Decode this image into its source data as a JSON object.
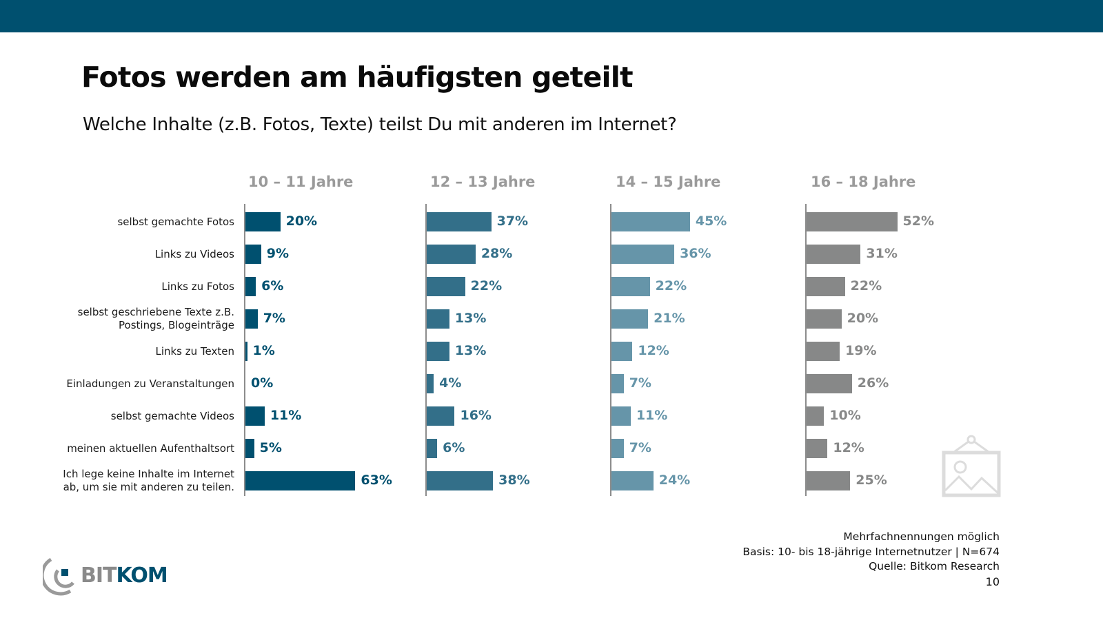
{
  "header": {
    "title": "Fotos werden am häufigsten geteilt",
    "subtitle": "Welche Inhalte (z.B. Fotos, Texte) teilst Du mit anderen im Internet?"
  },
  "chart_data": {
    "type": "bar",
    "orientation": "horizontal",
    "title": "Fotos werden am häufigsten geteilt",
    "subtitle": "Welche Inhalte (z.B. Fotos, Texte) teilst Du mit anderen im Internet?",
    "xlabel": "",
    "ylabel": "",
    "unit": "%",
    "xlim": [
      0,
      100
    ],
    "grid": false,
    "legend": "none",
    "categories": [
      "selbst gemachte Fotos",
      "Links zu Videos",
      "Links zu Fotos",
      "selbst geschriebene Texte z.B. Postings, Blogeinträge",
      "Links zu Texten",
      "Einladungen zu Veranstaltungen",
      "selbst gemachte Videos",
      "meinen aktuellen Aufenthaltsort",
      "Ich lege keine Inhalte im Internet ab, um sie mit anderen zu teilen."
    ],
    "category_lines": [
      [
        "selbst gemachte Fotos"
      ],
      [
        "Links zu Videos"
      ],
      [
        "Links zu Fotos"
      ],
      [
        "selbst geschriebene Texte z.B.",
        "Postings, Blogeinträge"
      ],
      [
        "Links zu Texten"
      ],
      [
        "Einladungen zu Veranstaltungen"
      ],
      [
        "selbst gemachte Videos"
      ],
      [
        "meinen aktuellen Aufenthaltsort"
      ],
      [
        "Ich lege keine Inhalte im Internet",
        "ab, um sie mit anderen zu teilen."
      ]
    ],
    "series": [
      {
        "name": "10 – 11 Jahre",
        "color": "#00506f",
        "label_color": "#00506f",
        "values": [
          20,
          9,
          6,
          7,
          1,
          0,
          11,
          5,
          63
        ]
      },
      {
        "name": "12 – 13 Jahre",
        "color": "#336f89",
        "label_color": "#336f89",
        "values": [
          37,
          28,
          22,
          13,
          13,
          4,
          16,
          6,
          38
        ]
      },
      {
        "name": "14 – 15 Jahre",
        "color": "#6695a9",
        "label_color": "#6695a9",
        "values": [
          45,
          36,
          22,
          21,
          12,
          7,
          11,
          7,
          24
        ]
      },
      {
        "name": "16 – 18 Jahre",
        "color": "#878888",
        "label_color": "#878888",
        "values": [
          52,
          31,
          22,
          20,
          19,
          26,
          10,
          12,
          25
        ]
      }
    ]
  },
  "footer": {
    "notes": [
      "Mehrfachnennungen möglich",
      "Basis: 10- bis 18-jährige Internetnutzer | N=674",
      "Quelle: Bitkom Research"
    ],
    "page_number": "10"
  },
  "logo": {
    "part1": "BIT",
    "part2": "KOM",
    "brand_color": "#00506f",
    "accent_gray": "#8a8a8a"
  },
  "colors": {
    "topbar": "#00506f"
  },
  "icons": {
    "placeholder": "picture-placeholder-icon"
  }
}
